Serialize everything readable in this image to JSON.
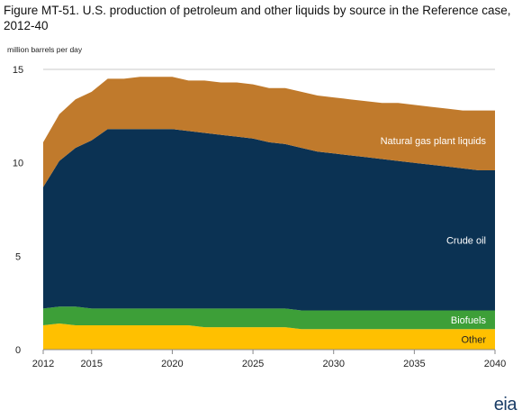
{
  "chart_data": {
    "type": "area",
    "stacked": true,
    "title": "Figure MT-51. U.S. production of petroleum and other liquids by source in the Reference case, 2012-40",
    "ylabel": "million barrels per day",
    "xlabel": "",
    "xlim": [
      2012,
      2040
    ],
    "ylim": [
      0,
      15
    ],
    "x_ticks": [
      "2012",
      "2015",
      "2020",
      "2025",
      "2030",
      "2035",
      "2040"
    ],
    "y_ticks": [
      "0",
      "5",
      "10",
      "15"
    ],
    "grid": "horizontal",
    "x": [
      2012,
      2013,
      2014,
      2015,
      2016,
      2017,
      2018,
      2019,
      2020,
      2021,
      2022,
      2023,
      2024,
      2025,
      2026,
      2027,
      2028,
      2029,
      2030,
      2031,
      2032,
      2033,
      2034,
      2035,
      2036,
      2037,
      2038,
      2039,
      2040
    ],
    "series": [
      {
        "name": "Other",
        "color": "#FFC000",
        "values": [
          1.3,
          1.4,
          1.3,
          1.3,
          1.3,
          1.3,
          1.3,
          1.3,
          1.3,
          1.3,
          1.2,
          1.2,
          1.2,
          1.2,
          1.2,
          1.2,
          1.1,
          1.1,
          1.1,
          1.1,
          1.1,
          1.1,
          1.1,
          1.1,
          1.1,
          1.1,
          1.1,
          1.1,
          1.1
        ]
      },
      {
        "name": "Biofuels",
        "color": "#3D9F38",
        "values": [
          0.9,
          0.9,
          1.0,
          0.9,
          0.9,
          0.9,
          0.9,
          0.9,
          0.9,
          0.9,
          1.0,
          1.0,
          1.0,
          1.0,
          1.0,
          1.0,
          1.0,
          1.0,
          1.0,
          1.0,
          1.0,
          1.0,
          1.0,
          1.0,
          1.0,
          1.0,
          1.0,
          1.0,
          1.0
        ]
      },
      {
        "name": "Crude oil",
        "color": "#0B3253",
        "values": [
          6.5,
          7.8,
          8.5,
          9.0,
          9.6,
          9.6,
          9.6,
          9.6,
          9.6,
          9.5,
          9.4,
          9.3,
          9.2,
          9.1,
          8.9,
          8.8,
          8.7,
          8.5,
          8.4,
          8.3,
          8.2,
          8.1,
          8.0,
          7.9,
          7.8,
          7.7,
          7.6,
          7.5,
          7.5
        ]
      },
      {
        "name": "Natural gas plant liquids",
        "color": "#C07A2C",
        "values": [
          2.4,
          2.5,
          2.6,
          2.6,
          2.7,
          2.7,
          2.8,
          2.8,
          2.8,
          2.7,
          2.8,
          2.8,
          2.9,
          2.9,
          2.9,
          3.0,
          3.0,
          3.0,
          3.0,
          3.0,
          3.0,
          3.0,
          3.1,
          3.1,
          3.1,
          3.1,
          3.1,
          3.2,
          3.2
        ]
      }
    ]
  },
  "logo": {
    "text": "eia"
  }
}
